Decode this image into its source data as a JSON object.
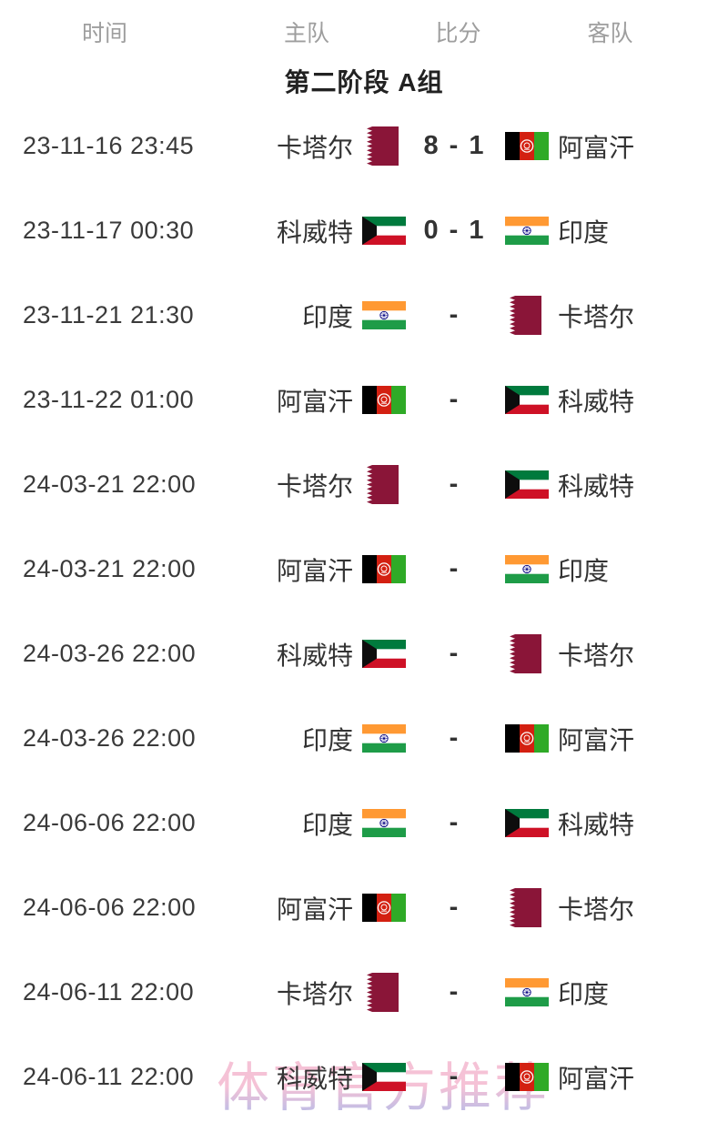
{
  "header": {
    "time": "时间",
    "home": "主队",
    "score": "比分",
    "away": "客队"
  },
  "group": {
    "title": "第二阶段 A组"
  },
  "watermark": {
    "text": "体育官方推荐",
    "color_top": "#f4bcd2",
    "color_bottom": "#a2b3e9"
  },
  "colors": {
    "header_text": "#9e9e9e",
    "row_text": "#333333",
    "title_text": "#222222",
    "score_text": "#333333"
  },
  "teams": {
    "qatar": {
      "label": "卡塔尔",
      "flag": {
        "type": "qatar",
        "maroon": "#8a1538",
        "white": "#ffffff"
      }
    },
    "kuwait": {
      "label": "科威特",
      "flag": {
        "type": "kuwait",
        "green": "#007a3d",
        "white": "#ffffff",
        "red": "#ce1126",
        "black": "#0d0d0d"
      }
    },
    "india": {
      "label": "印度",
      "flag": {
        "type": "india",
        "saffron": "#ff9933",
        "white": "#ffffff",
        "green": "#1e9c48",
        "navy": "#000080"
      }
    },
    "afghanistan": {
      "label": "阿富汗",
      "flag": {
        "type": "afghanistan",
        "black": "#000000",
        "red": "#d32011",
        "green": "#2faa27",
        "emblem": "#ffffff"
      }
    }
  },
  "matches": [
    {
      "time": "23-11-16 23:45",
      "home": "qatar",
      "score": "8 - 1",
      "away": "afghanistan"
    },
    {
      "time": "23-11-17 00:30",
      "home": "kuwait",
      "score": "0 - 1",
      "away": "india"
    },
    {
      "time": "23-11-21 21:30",
      "home": "india",
      "score": "-",
      "away": "qatar"
    },
    {
      "time": "23-11-22 01:00",
      "home": "afghanistan",
      "score": "-",
      "away": "kuwait"
    },
    {
      "time": "24-03-21 22:00",
      "home": "qatar",
      "score": "-",
      "away": "kuwait"
    },
    {
      "time": "24-03-21 22:00",
      "home": "afghanistan",
      "score": "-",
      "away": "india"
    },
    {
      "time": "24-03-26 22:00",
      "home": "kuwait",
      "score": "-",
      "away": "qatar"
    },
    {
      "time": "24-03-26 22:00",
      "home": "india",
      "score": "-",
      "away": "afghanistan"
    },
    {
      "time": "24-06-06 22:00",
      "home": "india",
      "score": "-",
      "away": "kuwait"
    },
    {
      "time": "24-06-06 22:00",
      "home": "afghanistan",
      "score": "-",
      "away": "qatar"
    },
    {
      "time": "24-06-11 22:00",
      "home": "qatar",
      "score": "-",
      "away": "india"
    },
    {
      "time": "24-06-11 22:00",
      "home": "kuwait",
      "score": "-",
      "away": "afghanistan"
    }
  ]
}
